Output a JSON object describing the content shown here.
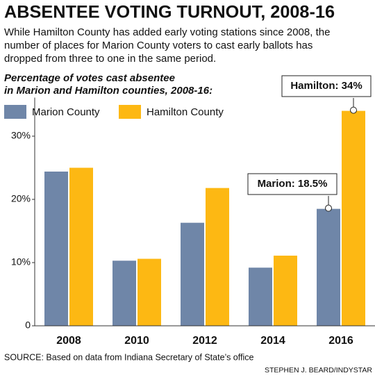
{
  "chart_data": {
    "type": "bar",
    "title": "ABSENTEE VOTING TURNOUT, 2008-16",
    "subtitle": [
      "While Hamilton County has added early voting stations since 2008, the",
      "number of places for Marion County voters to cast early ballots has",
      "dropped from three to one in the same period."
    ],
    "chart_title": [
      "Percentage of votes cast absentee",
      "in Marion and Hamilton counties, 2008-16:"
    ],
    "categories": [
      "2008",
      "2010",
      "2012",
      "2014",
      "2016"
    ],
    "series": [
      {
        "name": "Marion County",
        "color": "#6f86a8",
        "values": [
          24.4,
          10.3,
          16.3,
          9.2,
          18.5
        ]
      },
      {
        "name": "Hamilton County",
        "color": "#fdb813",
        "values": [
          25.0,
          10.6,
          21.8,
          11.1,
          34.0
        ]
      }
    ],
    "annotations": [
      "Marion: 18.5%",
      "Hamilton: 34%"
    ],
    "ylim": [
      0,
      35
    ],
    "yticks": [
      0,
      {
        "value": 10,
        "label": "10%"
      },
      {
        "value": 20,
        "label": "20%"
      },
      {
        "value": 30,
        "label": "30%"
      }
    ],
    "grid": false,
    "source": "SOURCE: Based on data from Indiana Secretary of State’s office",
    "credit": "STEPHEN J. BEARD/INDYSTAR"
  }
}
